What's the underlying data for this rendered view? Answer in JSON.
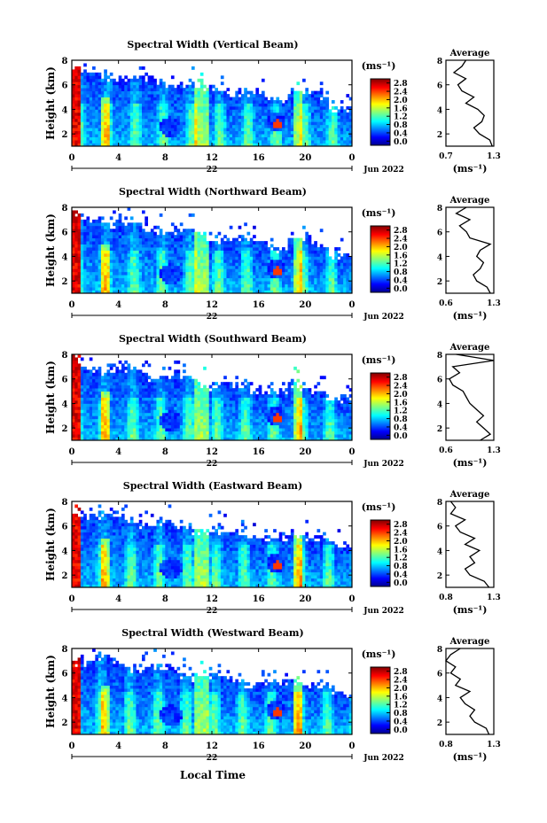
{
  "figure": {
    "bottom_xlabel": "Local Time",
    "date_label": "Jun 2022",
    "day_label": "22",
    "cbar_unit": "(ms⁻¹)",
    "avg_title": "Average",
    "avg_unit": "(ms⁻¹)",
    "ylabel": "Height (km)"
  },
  "chart_data": [
    {
      "type": "heatmap",
      "title": "Spectral Width (Vertical Beam)",
      "xlabel": "",
      "ylabel": "Height (km)",
      "x_ticks": [
        "0",
        "4",
        "8",
        "12",
        "16",
        "20",
        "0"
      ],
      "y_ticks": [
        "2",
        "4",
        "6",
        "8"
      ],
      "xlim": [
        0,
        24
      ],
      "ylim": [
        1,
        8
      ],
      "colorbar": {
        "min": 0.0,
        "max": 2.8,
        "ticks": [
          "2.8",
          "2.4",
          "2.0",
          "1.6",
          "1.2",
          "0.8",
          "0.4",
          "0.0"
        ]
      },
      "profile": {
        "title": "Average",
        "xlim": [
          0.7,
          1.3
        ],
        "x_ticks": [
          "0.7",
          "1.3"
        ],
        "y_ticks": [
          "2",
          "4",
          "6",
          "8"
        ],
        "height": [
          1.0,
          1.5,
          2.0,
          2.5,
          3.0,
          3.5,
          4.0,
          4.5,
          5.0,
          5.5,
          6.0,
          6.5,
          7.0,
          7.5,
          8.0
        ],
        "value": [
          1.28,
          1.25,
          1.12,
          1.05,
          1.15,
          1.18,
          1.1,
          0.95,
          1.05,
          0.9,
          0.85,
          0.95,
          0.8,
          0.9,
          0.95
        ]
      }
    },
    {
      "type": "heatmap",
      "title": "Spectral Width (Northward Beam)",
      "xlabel": "",
      "ylabel": "Height (km)",
      "x_ticks": [
        "0",
        "4",
        "8",
        "12",
        "16",
        "20",
        "0"
      ],
      "y_ticks": [
        "2",
        "4",
        "6",
        "8"
      ],
      "xlim": [
        0,
        24
      ],
      "ylim": [
        1,
        8
      ],
      "colorbar": {
        "min": 0.0,
        "max": 2.8,
        "ticks": [
          "2.8",
          "2.4",
          "2.0",
          "1.6",
          "1.2",
          "0.8",
          "0.4",
          "0.0"
        ]
      },
      "profile": {
        "title": "Average",
        "xlim": [
          0.6,
          1.3
        ],
        "x_ticks": [
          "0.6",
          "1.3"
        ],
        "y_ticks": [
          "2",
          "4",
          "6",
          "8"
        ],
        "height": [
          1.0,
          1.5,
          2.0,
          2.5,
          3.0,
          3.5,
          4.0,
          4.5,
          5.0,
          5.5,
          6.0,
          6.5,
          7.0,
          7.5,
          8.0
        ],
        "value": [
          1.25,
          1.2,
          1.05,
          1.0,
          1.1,
          1.15,
          1.05,
          1.1,
          1.25,
          0.95,
          0.9,
          0.8,
          0.95,
          0.75,
          0.9
        ]
      }
    },
    {
      "type": "heatmap",
      "title": "Spectral Width (Southward Beam)",
      "xlabel": "",
      "ylabel": "Height (km)",
      "x_ticks": [
        "0",
        "4",
        "8",
        "12",
        "16",
        "20",
        "0"
      ],
      "y_ticks": [
        "2",
        "4",
        "6",
        "8"
      ],
      "xlim": [
        0,
        24
      ],
      "ylim": [
        1,
        8
      ],
      "colorbar": {
        "min": 0.0,
        "max": 2.8,
        "ticks": [
          "2.8",
          "2.4",
          "2.0",
          "1.6",
          "1.2",
          "0.8",
          "0.4",
          "0.0"
        ]
      },
      "profile": {
        "title": "Average",
        "xlim": [
          0.6,
          1.3
        ],
        "x_ticks": [
          "0.6",
          "1.3"
        ],
        "y_ticks": [
          "2",
          "4",
          "6",
          "8"
        ],
        "height": [
          1.0,
          1.5,
          2.0,
          2.5,
          3.0,
          3.5,
          4.0,
          4.5,
          5.0,
          5.5,
          6.0,
          6.5,
          7.0,
          7.5,
          8.0
        ],
        "value": [
          1.1,
          1.25,
          1.15,
          1.05,
          1.15,
          1.05,
          0.95,
          0.9,
          0.85,
          0.7,
          0.65,
          0.8,
          0.7,
          1.3,
          0.75
        ]
      }
    },
    {
      "type": "heatmap",
      "title": "Spectral Width (Eastward Beam)",
      "xlabel": "",
      "ylabel": "Height (km)",
      "x_ticks": [
        "0",
        "4",
        "8",
        "12",
        "16",
        "20",
        "0"
      ],
      "y_ticks": [
        "2",
        "4",
        "6",
        "8"
      ],
      "xlim": [
        0,
        24
      ],
      "ylim": [
        1,
        8
      ],
      "colorbar": {
        "min": 0.0,
        "max": 2.8,
        "ticks": [
          "2.8",
          "2.4",
          "2.0",
          "1.6",
          "1.2",
          "0.8",
          "0.4",
          "0.0"
        ]
      },
      "profile": {
        "title": "Average",
        "xlim": [
          0.8,
          1.3
        ],
        "x_ticks": [
          "0.8",
          "1.3"
        ],
        "y_ticks": [
          "2",
          "4",
          "6",
          "8"
        ],
        "height": [
          1.0,
          1.5,
          2.0,
          2.5,
          3.0,
          3.5,
          4.0,
          4.5,
          5.0,
          5.5,
          6.0,
          6.5,
          7.0,
          7.5,
          8.0
        ],
        "value": [
          1.25,
          1.2,
          1.05,
          1.0,
          1.1,
          1.05,
          1.15,
          1.0,
          1.1,
          0.95,
          0.9,
          1.0,
          0.85,
          0.9,
          0.85
        ]
      }
    },
    {
      "type": "heatmap",
      "title": "Spectral Width (Westward Beam)",
      "xlabel": "Local Time",
      "ylabel": "Height (km)",
      "x_ticks": [
        "0",
        "4",
        "8",
        "12",
        "16",
        "20",
        "0"
      ],
      "y_ticks": [
        "2",
        "4",
        "6",
        "8"
      ],
      "xlim": [
        0,
        24
      ],
      "ylim": [
        1,
        8
      ],
      "colorbar": {
        "min": 0.0,
        "max": 2.8,
        "ticks": [
          "2.8",
          "2.4",
          "2.0",
          "1.6",
          "1.2",
          "0.8",
          "0.4",
          "0.0"
        ]
      },
      "profile": {
        "title": "Average",
        "xlim": [
          0.8,
          1.3
        ],
        "x_ticks": [
          "0.8",
          "1.3"
        ],
        "y_ticks": [
          "2",
          "4",
          "6",
          "8"
        ],
        "height": [
          1.0,
          1.5,
          2.0,
          2.5,
          3.0,
          3.5,
          4.0,
          4.5,
          5.0,
          5.5,
          6.0,
          6.5,
          7.0,
          7.5,
          8.0
        ],
        "value": [
          1.25,
          1.22,
          1.1,
          1.05,
          1.1,
          1.0,
          0.95,
          1.05,
          0.9,
          0.95,
          0.85,
          0.9,
          0.8,
          0.85,
          0.95
        ]
      }
    }
  ]
}
